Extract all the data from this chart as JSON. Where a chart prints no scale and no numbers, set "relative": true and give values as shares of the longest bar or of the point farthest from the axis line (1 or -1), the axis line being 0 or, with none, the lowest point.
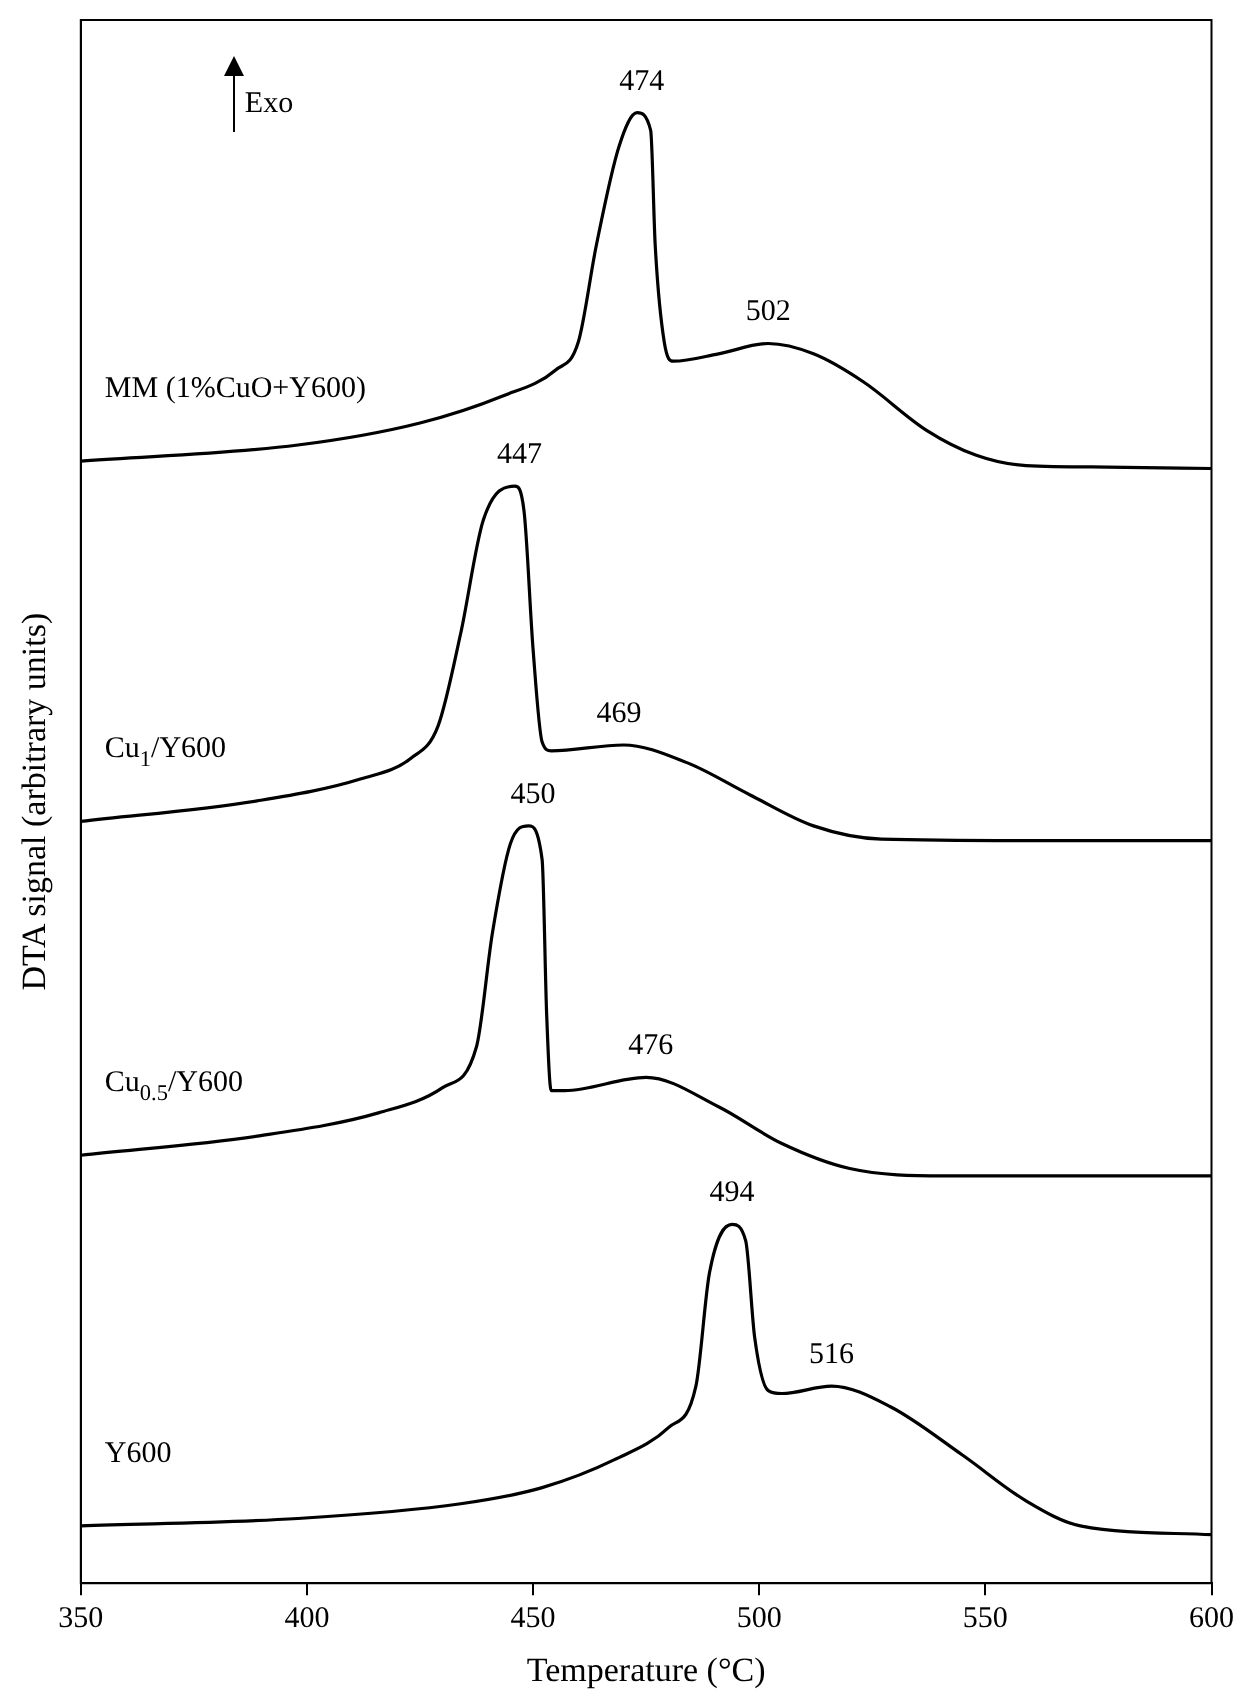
{
  "chart_data": {
    "type": "line",
    "relative": true,
    "xlabel": "Temperature (°C)",
    "ylabel": "DTA signal (arbitrary units)",
    "xlim": [
      350,
      600
    ],
    "xticks": [
      350,
      400,
      450,
      500,
      550,
      600
    ],
    "grid": false,
    "legend": false,
    "marker": "none",
    "line_style": "solid",
    "annotations": [
      "Exo",
      {
        "text": "474",
        "x": 474,
        "y": 1.0
      },
      {
        "text": "502",
        "x": 502,
        "y": 0.843
      },
      {
        "text": "447",
        "x": 447,
        "y": 0.746
      },
      {
        "text": "469",
        "x": 469,
        "y": 0.57
      },
      {
        "text": "450",
        "x": 450,
        "y": 0.515
      },
      {
        "text": "476",
        "x": 476,
        "y": 0.344
      },
      {
        "text": "494",
        "x": 494,
        "y": 0.244
      },
      {
        "text": "516",
        "x": 516,
        "y": 0.134
      }
    ],
    "series": [
      {
        "name": "MM (1%CuO+Y600)",
        "color": "#000000",
        "x": [
          350,
          398,
          425,
          443,
          455,
          460,
          464,
          469,
          473,
          476,
          477,
          479,
          481,
          491,
          502,
          512,
          523,
          537,
          548,
          559,
          577,
          600
        ],
        "values": [
          0.763,
          0.774,
          0.789,
          0.807,
          0.825,
          0.844,
          0.91,
          0.977,
          1.0,
          0.988,
          0.91,
          0.844,
          0.831,
          0.836,
          0.843,
          0.836,
          0.817,
          0.784,
          0.767,
          0.76,
          0.759,
          0.758
        ]
      },
      {
        "name": "Cu$_{1}$/Y600",
        "color": "#000000",
        "x": [
          350,
          389,
          412,
          423,
          429,
          434,
          439,
          446,
          448,
          450,
          452,
          454,
          470,
          484,
          498,
          512,
          527,
          559,
          600
        ],
        "values": [
          0.518,
          0.532,
          0.547,
          0.561,
          0.583,
          0.646,
          0.723,
          0.746,
          0.729,
          0.635,
          0.572,
          0.566,
          0.57,
          0.558,
          0.536,
          0.515,
          0.506,
          0.505,
          0.505
        ]
      },
      {
        "name": "Cu$_{0.5}$/Y600",
        "color": "#000000",
        "x": [
          350,
          389,
          416,
          430,
          437.5,
          441,
          445,
          449,
          452,
          453,
          454,
          457,
          475,
          491,
          505,
          520,
          541,
          600
        ],
        "values": [
          0.291,
          0.304,
          0.32,
          0.337,
          0.365,
          0.442,
          0.503,
          0.515,
          0.492,
          0.387,
          0.335,
          0.335,
          0.344,
          0.324,
          0.299,
          0.282,
          0.277,
          0.277
        ]
      },
      {
        "name": "Y600",
        "color": "#000000",
        "x": [
          350,
          398,
          434,
          452,
          468,
          480,
          486,
          489,
          494,
          497,
          499,
          502,
          505,
          516,
          529,
          545,
          559,
          571,
          600
        ],
        "values": [
          0.039,
          0.044,
          0.054,
          0.065,
          0.084,
          0.106,
          0.134,
          0.211,
          0.244,
          0.233,
          0.167,
          0.131,
          0.129,
          0.134,
          0.12,
          0.087,
          0.056,
          0.039,
          0.033
        ]
      }
    ]
  }
}
